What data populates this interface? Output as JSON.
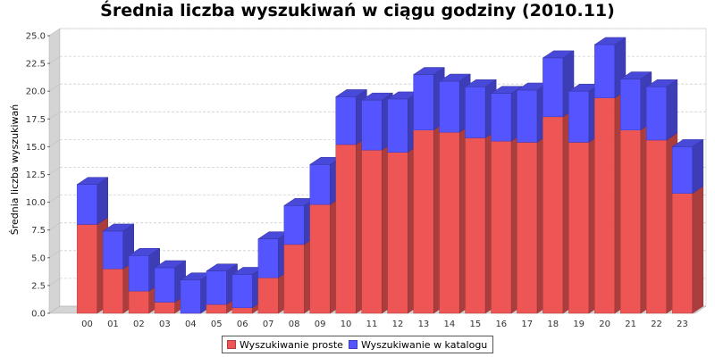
{
  "chart_data": {
    "type": "bar",
    "stacked": true,
    "three_d": true,
    "title": "Średnia liczba wyszukiwań w ciągu godziny (2010.11)",
    "xlabel": "",
    "ylabel": "Średnia liczba wyszukiwań",
    "categories": [
      "00",
      "01",
      "02",
      "03",
      "04",
      "05",
      "06",
      "07",
      "08",
      "09",
      "10",
      "11",
      "12",
      "13",
      "14",
      "15",
      "16",
      "17",
      "18",
      "19",
      "20",
      "21",
      "22",
      "23"
    ],
    "series": [
      {
        "name": "Wyszukiwanie proste",
        "color": "#ee5555",
        "values": [
          8.0,
          4.0,
          2.0,
          1.0,
          0.0,
          0.8,
          0.5,
          3.2,
          6.2,
          9.8,
          15.2,
          14.7,
          14.5,
          16.5,
          16.3,
          15.8,
          15.5,
          15.4,
          17.7,
          15.4,
          19.4,
          16.5,
          15.6,
          10.8
        ]
      },
      {
        "name": "Wyszukiwanie w katalogu",
        "color": "#5555ff",
        "values": [
          3.6,
          3.4,
          3.2,
          3.1,
          3.0,
          3.0,
          3.0,
          3.5,
          3.5,
          3.6,
          4.3,
          4.5,
          4.8,
          5.0,
          4.6,
          4.6,
          4.3,
          4.7,
          5.3,
          4.6,
          4.8,
          4.6,
          4.8,
          4.2
        ]
      }
    ],
    "ylim": [
      0,
      25
    ],
    "yticks": [
      "0.0",
      "2.5",
      "5.0",
      "7.5",
      "10.0",
      "12.5",
      "15.0",
      "17.5",
      "20.0",
      "22.5",
      "25.0"
    ],
    "grid": true,
    "legend_position": "bottom"
  }
}
